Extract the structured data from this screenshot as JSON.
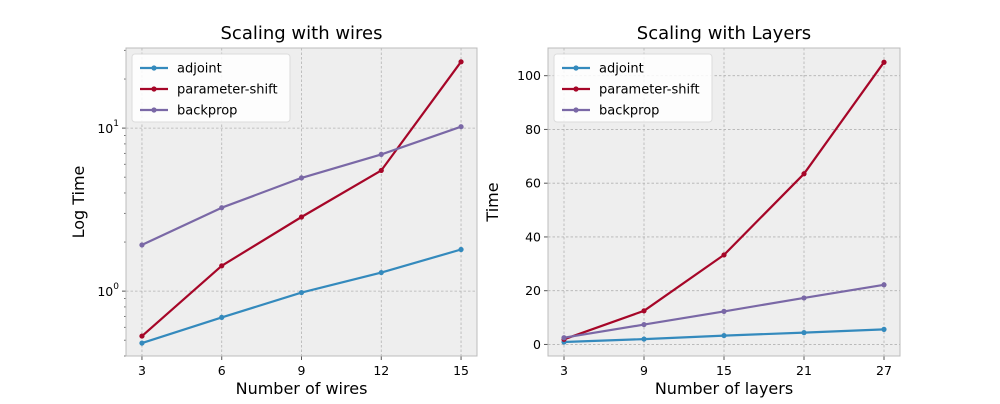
{
  "colors": {
    "adjoint": "#348abd",
    "parameter-shift": "#a60628",
    "backprop": "#7a68a6",
    "axes_bg": "#eeeeee",
    "grid": "#b2b2b2"
  },
  "chart_data": [
    {
      "type": "line",
      "title": "Scaling with wires",
      "xlabel": "Number of wires",
      "ylabel": "Log Time",
      "yscale": "log",
      "x": [
        3,
        6,
        9,
        12,
        15
      ],
      "xticks": [
        "3",
        "6",
        "9",
        "12",
        "15"
      ],
      "yticks": [
        {
          "base": "10",
          "exp": "0"
        },
        {
          "base": "10",
          "exp": "1"
        }
      ],
      "xlim": [
        2.4,
        15.6
      ],
      "ylim": [
        0.4,
        31
      ],
      "grid": true,
      "legend_position": "top-left",
      "series": [
        {
          "name": "adjoint",
          "values": [
            0.48,
            0.69,
            0.98,
            1.3,
            1.8
          ]
        },
        {
          "name": "parameter-shift",
          "values": [
            0.53,
            1.43,
            2.85,
            5.5,
            25.5
          ]
        },
        {
          "name": "backprop",
          "values": [
            1.92,
            3.25,
            4.95,
            6.9,
            10.2
          ]
        }
      ]
    },
    {
      "type": "line",
      "title": "Scaling with Layers",
      "xlabel": "Number of layers",
      "ylabel": "Time",
      "yscale": "linear",
      "x": [
        3,
        9,
        15,
        21,
        27
      ],
      "xticks": [
        "3",
        "9",
        "15",
        "21",
        "27"
      ],
      "yticks": [
        "0",
        "20",
        "40",
        "60",
        "80",
        "100"
      ],
      "xlim": [
        1.8,
        28.2
      ],
      "ylim": [
        -4.3,
        110.3
      ],
      "grid": true,
      "legend_position": "top-left",
      "series": [
        {
          "name": "adjoint",
          "values": [
            0.9,
            2.0,
            3.3,
            4.4,
            5.6
          ]
        },
        {
          "name": "parameter-shift",
          "values": [
            1.9,
            12.5,
            33.3,
            63.5,
            105.0
          ]
        },
        {
          "name": "backprop",
          "values": [
            2.5,
            7.4,
            12.3,
            17.3,
            22.2
          ]
        }
      ]
    }
  ]
}
